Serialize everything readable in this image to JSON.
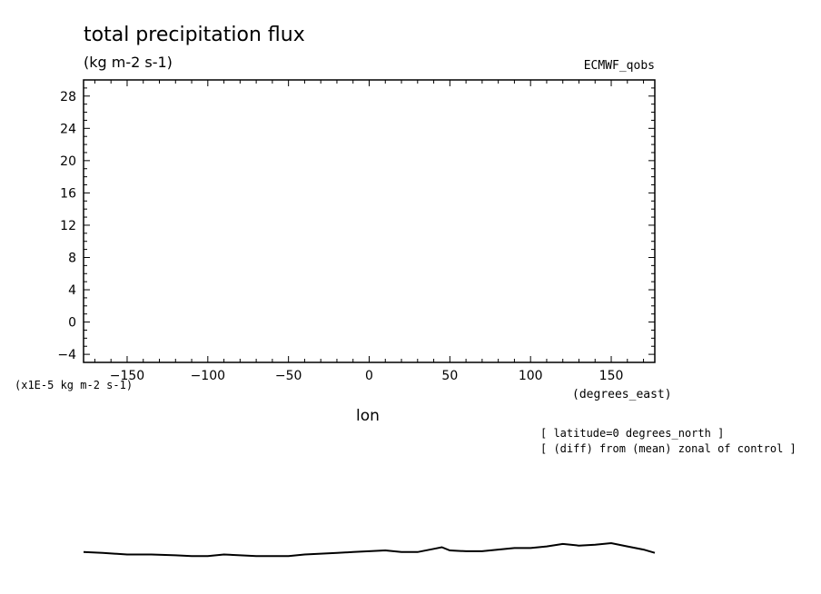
{
  "chart_data": {
    "type": "line",
    "title": "total precipitation flux",
    "subtitle": "(kg m-2 s-1)",
    "model_label": "ECMWF_qobs",
    "xlabel": "lon",
    "xunit": "(degrees_east)",
    "ylabel": "(x1E-5 kg m-2 s-1)",
    "notes": [
      "[ latitude=0 degrees_north ]",
      "[ (diff) from (mean) zonal of control ]"
    ],
    "xlim": [
      -177,
      177
    ],
    "ylim": [
      -5,
      30
    ],
    "xticks": [
      -150,
      -100,
      -50,
      0,
      50,
      100,
      150
    ],
    "yticks": [
      -4,
      0,
      4,
      8,
      12,
      16,
      20,
      24,
      28
    ],
    "grid": false,
    "series": [
      {
        "x": [
          -177,
          -165,
          -150,
          -135,
          -120,
          -110,
          -100,
          -90,
          -80,
          -70,
          -60,
          -50,
          -40,
          -30,
          -20,
          -10,
          0,
          10,
          20,
          30,
          40,
          45,
          50,
          60,
          70,
          80,
          90,
          100,
          110,
          120,
          130,
          140,
          150,
          160,
          170,
          177
        ],
        "y": [
          -28.5,
          -28.6,
          -28.8,
          -28.8,
          -28.9,
          -29.0,
          -29.0,
          -28.8,
          -28.9,
          -29.0,
          -29.0,
          -29.0,
          -28.8,
          -28.7,
          -28.6,
          -28.5,
          -28.4,
          -28.3,
          -28.5,
          -28.5,
          -28.1,
          -27.9,
          -28.3,
          -28.4,
          -28.4,
          -28.2,
          -28.0,
          -28.0,
          -27.8,
          -27.5,
          -27.7,
          -27.6,
          -27.4,
          -27.8,
          -28.2,
          -28.6
        ]
      }
    ]
  }
}
